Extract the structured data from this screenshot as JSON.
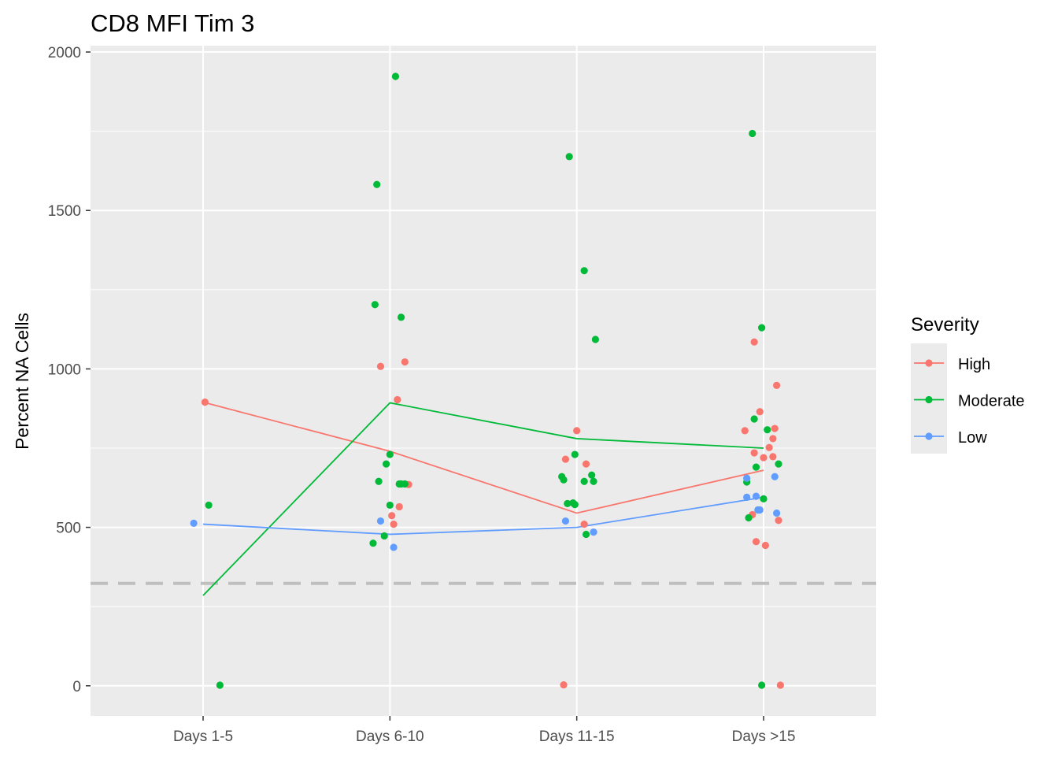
{
  "chart_data": {
    "type": "scatter",
    "title": "CD8 MFI Tim 3",
    "xlabel": "",
    "ylabel": "Percent NA Cells",
    "categories": [
      "Days 1-5",
      "Days 6-10",
      "Days 11-15",
      "Days >15"
    ],
    "ylim": [
      -95,
      2020
    ],
    "yticks": [
      0,
      500,
      1000,
      1500,
      2000
    ],
    "grid": true,
    "reference_line": {
      "y": 323,
      "style": "dashed",
      "color": "#bfbfbf"
    },
    "legend": {
      "title": "Severity",
      "position": "right"
    },
    "series": [
      {
        "name": "High",
        "color": "#F8766D",
        "line": [
          895,
          740,
          545,
          680
        ],
        "points": [
          {
            "x": 0.01,
            "y": 895
          },
          {
            "x": 0.95,
            "y": 1008
          },
          {
            "x": 1.08,
            "y": 1022
          },
          {
            "x": 1.04,
            "y": 903
          },
          {
            "x": 1.1,
            "y": 635
          },
          {
            "x": 1.05,
            "y": 565
          },
          {
            "x": 1.01,
            "y": 537
          },
          {
            "x": 1.02,
            "y": 510
          },
          {
            "x": 2.0,
            "y": 805
          },
          {
            "x": 1.94,
            "y": 715
          },
          {
            "x": 2.05,
            "y": 700
          },
          {
            "x": 2.04,
            "y": 510
          },
          {
            "x": 1.93,
            "y": 3
          },
          {
            "x": 2.95,
            "y": 1085
          },
          {
            "x": 3.07,
            "y": 948
          },
          {
            "x": 2.98,
            "y": 865
          },
          {
            "x": 3.06,
            "y": 812
          },
          {
            "x": 2.9,
            "y": 805
          },
          {
            "x": 3.05,
            "y": 780
          },
          {
            "x": 3.03,
            "y": 752
          },
          {
            "x": 2.95,
            "y": 735
          },
          {
            "x": 3.05,
            "y": 723
          },
          {
            "x": 3.0,
            "y": 720
          },
          {
            "x": 2.94,
            "y": 540
          },
          {
            "x": 3.08,
            "y": 522
          },
          {
            "x": 2.96,
            "y": 455
          },
          {
            "x": 3.01,
            "y": 443
          },
          {
            "x": 3.09,
            "y": 2
          }
        ]
      },
      {
        "name": "Moderate",
        "color": "#00BA38",
        "line": [
          285,
          893,
          780,
          750
        ],
        "points": [
          {
            "x": 0.03,
            "y": 570
          },
          {
            "x": 0.09,
            "y": 2
          },
          {
            "x": 1.03,
            "y": 1923
          },
          {
            "x": 0.93,
            "y": 1582
          },
          {
            "x": 0.92,
            "y": 1203
          },
          {
            "x": 1.06,
            "y": 1163
          },
          {
            "x": 1.0,
            "y": 730
          },
          {
            "x": 0.98,
            "y": 700
          },
          {
            "x": 0.94,
            "y": 645
          },
          {
            "x": 1.05,
            "y": 637
          },
          {
            "x": 1.06,
            "y": 637
          },
          {
            "x": 1.08,
            "y": 637
          },
          {
            "x": 1.0,
            "y": 570
          },
          {
            "x": 0.97,
            "y": 473
          },
          {
            "x": 0.91,
            "y": 450
          },
          {
            "x": 1.96,
            "y": 1670
          },
          {
            "x": 2.04,
            "y": 1310
          },
          {
            "x": 2.1,
            "y": 1093
          },
          {
            "x": 1.99,
            "y": 730
          },
          {
            "x": 2.08,
            "y": 665
          },
          {
            "x": 1.92,
            "y": 660
          },
          {
            "x": 1.93,
            "y": 650
          },
          {
            "x": 2.04,
            "y": 645
          },
          {
            "x": 2.09,
            "y": 645
          },
          {
            "x": 1.98,
            "y": 577
          },
          {
            "x": 1.95,
            "y": 575
          },
          {
            "x": 1.99,
            "y": 572
          },
          {
            "x": 2.05,
            "y": 478
          },
          {
            "x": 2.94,
            "y": 1743
          },
          {
            "x": 2.99,
            "y": 1130
          },
          {
            "x": 2.95,
            "y": 842
          },
          {
            "x": 3.02,
            "y": 808
          },
          {
            "x": 3.08,
            "y": 700
          },
          {
            "x": 2.96,
            "y": 690
          },
          {
            "x": 2.91,
            "y": 643
          },
          {
            "x": 3.0,
            "y": 590
          },
          {
            "x": 2.97,
            "y": 555
          },
          {
            "x": 2.92,
            "y": 530
          },
          {
            "x": 2.99,
            "y": 2
          }
        ]
      },
      {
        "name": "Low",
        "color": "#619CFF",
        "line": [
          510,
          478,
          500,
          595
        ],
        "points": [
          {
            "x": -0.05,
            "y": 513
          },
          {
            "x": 0.95,
            "y": 520
          },
          {
            "x": 1.02,
            "y": 437
          },
          {
            "x": 1.94,
            "y": 520
          },
          {
            "x": 2.09,
            "y": 485
          },
          {
            "x": 3.06,
            "y": 660
          },
          {
            "x": 2.91,
            "y": 655
          },
          {
            "x": 2.96,
            "y": 598
          },
          {
            "x": 2.91,
            "y": 595
          },
          {
            "x": 2.98,
            "y": 555
          },
          {
            "x": 2.97,
            "y": 555
          },
          {
            "x": 3.07,
            "y": 545
          }
        ]
      }
    ]
  }
}
